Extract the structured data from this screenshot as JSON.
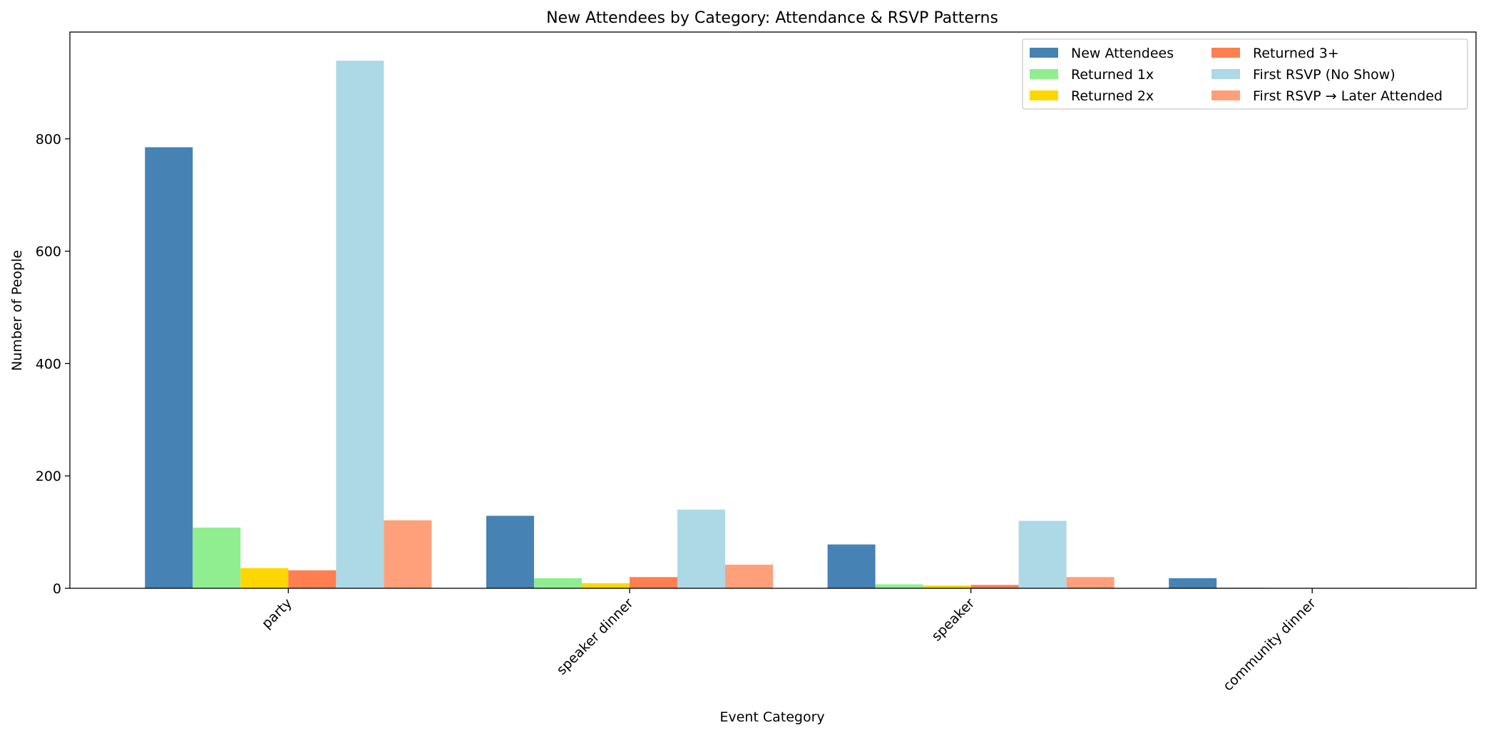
{
  "chart_data": {
    "type": "bar",
    "title": "New Attendees by Category: Attendance & RSVP Patterns",
    "xlabel": "Event Category",
    "ylabel": "Number of People",
    "ylim": [
      0,
      990
    ],
    "yticks": [
      0,
      200,
      400,
      600,
      800
    ],
    "categories": [
      "party",
      "speaker dinner",
      "speaker",
      "community dinner"
    ],
    "grid": false,
    "legend_position": "top-right",
    "legend_columns": 2,
    "series": [
      {
        "name": "New Attendees",
        "color": "#4682B4",
        "values": [
          785,
          129,
          78,
          18
        ]
      },
      {
        "name": "Returned 1x",
        "color": "#90EE90",
        "values": [
          108,
          18,
          7,
          1
        ]
      },
      {
        "name": "Returned 2x",
        "color": "#FFD700",
        "values": [
          36,
          9,
          5,
          0
        ]
      },
      {
        "name": "Returned 3+",
        "color": "#FF7F50",
        "values": [
          32,
          20,
          6,
          0
        ]
      },
      {
        "name": "First RSVP (No Show)",
        "color": "#ADD8E6",
        "values": [
          939,
          140,
          120,
          1
        ]
      },
      {
        "name": "First RSVP → Later Attended",
        "color": "#FFA07A",
        "values": [
          121,
          42,
          20,
          0
        ]
      }
    ]
  }
}
